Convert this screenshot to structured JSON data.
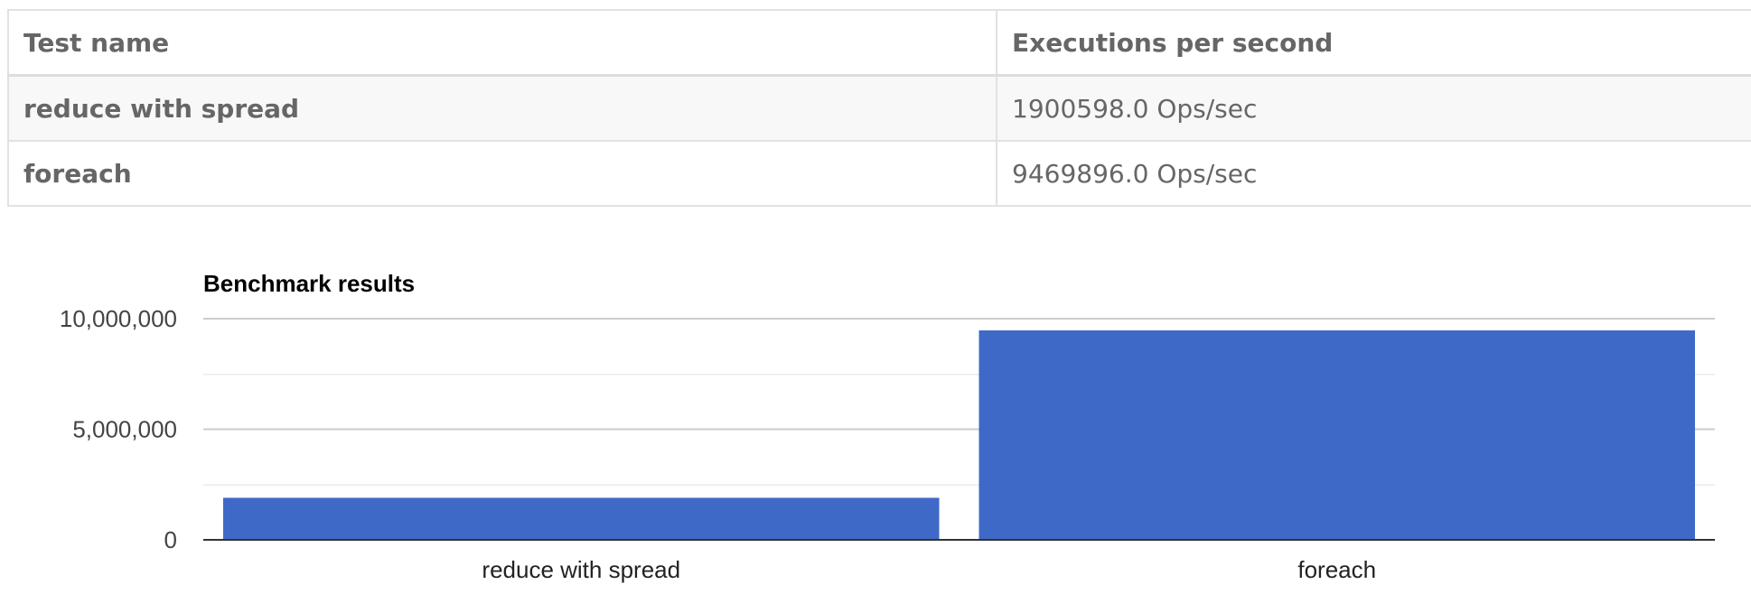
{
  "table": {
    "headers": [
      "Test name",
      "Executions per second"
    ],
    "rows": [
      {
        "name": "reduce with spread",
        "value": "1900598.0 Ops/sec"
      },
      {
        "name": "foreach",
        "value": "9469896.0 Ops/sec"
      }
    ]
  },
  "chart_data": {
    "type": "bar",
    "title": "Benchmark results",
    "categories": [
      "reduce with spread",
      "foreach"
    ],
    "values": [
      1900598.0,
      9469896.0
    ],
    "ylim": [
      0,
      10000000
    ],
    "yticks": [
      0,
      5000000,
      10000000
    ],
    "ytick_labels": [
      "0",
      "5,000,000",
      "10,000,000"
    ],
    "xlabel": "",
    "ylabel": "",
    "grid": true,
    "legend": "none",
    "colors": {
      "bar": "#3f69c7",
      "major_grid": "#cccccc",
      "minor_grid": "#ebebeb",
      "axis": "#333333",
      "text": "#444444",
      "title": "#000000"
    }
  }
}
